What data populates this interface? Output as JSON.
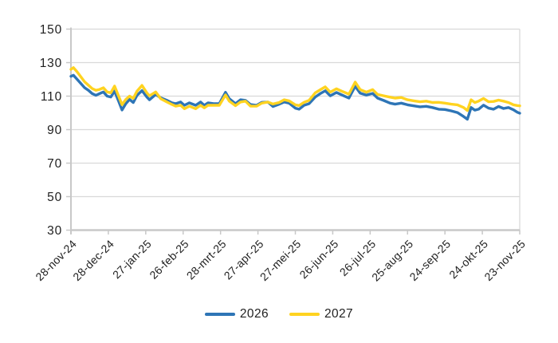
{
  "chart_data": {
    "type": "line",
    "title": "",
    "xlabel": "",
    "ylabel": "",
    "ylim": [
      30,
      150
    ],
    "y_ticks": [
      30,
      50,
      70,
      90,
      110,
      130,
      150
    ],
    "x_range": [
      0,
      360
    ],
    "x_tick_interval_days": 30,
    "x_tick_labels": [
      "28-nov-24",
      "28-dec-24",
      "27-jan-25",
      "26-feb-25",
      "28-mrt-25",
      "27-apr-25",
      "27-mei-25",
      "26-jun-25",
      "26-jul-25",
      "25-aug-25",
      "24-sep-25",
      "24-okt-25",
      "23-nov-25"
    ],
    "grid": true,
    "legend_position": "bottom",
    "days": [
      0,
      2,
      5,
      8,
      11,
      14,
      17,
      20,
      23,
      26,
      29,
      32,
      35,
      38,
      41,
      44,
      47,
      50,
      53,
      57,
      61,
      63,
      68,
      72,
      77,
      81,
      84,
      88,
      91,
      95,
      100,
      104,
      107,
      110,
      115,
      119,
      124,
      127,
      132,
      136,
      140,
      144,
      149,
      153,
      158,
      162,
      167,
      171,
      175,
      180,
      183,
      187,
      191,
      196,
      200,
      204,
      208,
      213,
      217,
      223,
      228,
      232,
      237,
      242,
      246,
      251,
      256,
      260,
      265,
      270,
      275,
      280,
      285,
      290,
      295,
      300,
      305,
      310,
      315,
      318,
      321,
      324,
      327,
      331,
      335,
      339,
      343,
      347,
      351,
      355,
      358,
      360
    ],
    "series": [
      {
        "name": "2026",
        "color": "#2e75b6",
        "values": [
          121.8,
          122.5,
          120.0,
          117.5,
          115.0,
          113.5,
          111.5,
          110.5,
          111.5,
          112.5,
          110.0,
          109.5,
          113.0,
          107.5,
          101.7,
          105.5,
          108.0,
          106.2,
          110.5,
          113.3,
          109.4,
          107.8,
          111.0,
          109.0,
          107.5,
          106.0,
          105.5,
          106.5,
          104.5,
          106.0,
          104.5,
          106.5,
          104.5,
          106.0,
          105.5,
          105.5,
          112.3,
          108.5,
          105.5,
          107.8,
          107.5,
          105.0,
          104.5,
          106.3,
          106.5,
          103.8,
          105.2,
          106.5,
          105.8,
          102.8,
          102.2,
          104.5,
          105.5,
          109.5,
          111.5,
          113.2,
          110.2,
          112.2,
          110.8,
          108.8,
          115.9,
          111.8,
          110.6,
          111.6,
          108.8,
          107.4,
          105.8,
          105.2,
          105.8,
          104.8,
          104.2,
          103.6,
          103.9,
          103.2,
          102.2,
          102.0,
          101.2,
          100.2,
          97.8,
          96.2,
          103.2,
          101.6,
          102.2,
          104.6,
          102.8,
          102.2,
          103.8,
          102.6,
          103.2,
          101.8,
          100.4,
          99.8
        ]
      },
      {
        "name": "2027",
        "color": "#ffd320",
        "values": [
          126.0,
          127.0,
          124.5,
          121.5,
          118.5,
          116.5,
          114.5,
          113.5,
          114.0,
          115.0,
          112.5,
          112.0,
          116.0,
          110.5,
          104.9,
          108.0,
          110.0,
          108.6,
          113.0,
          116.4,
          111.8,
          110.2,
          112.5,
          108.5,
          106.5,
          105.0,
          104.0,
          104.5,
          102.5,
          104.0,
          102.5,
          104.5,
          103.0,
          104.5,
          104.5,
          104.5,
          110.7,
          107.0,
          104.3,
          106.5,
          107.0,
          104.0,
          104.0,
          105.8,
          106.5,
          105.3,
          106.2,
          107.8,
          107.2,
          104.8,
          104.4,
          106.3,
          107.5,
          112.0,
          113.8,
          115.5,
          112.4,
          114.4,
          113.0,
          111.2,
          118.4,
          113.9,
          112.4,
          113.9,
          111.0,
          110.2,
          109.4,
          108.8,
          109.2,
          107.8,
          107.2,
          106.6,
          107.0,
          106.2,
          106.3,
          105.8,
          105.2,
          104.8,
          103.2,
          101.4,
          107.8,
          106.2,
          107.0,
          108.6,
          106.6,
          106.8,
          107.6,
          107.0,
          106.2,
          104.8,
          104.4,
          104.2
        ]
      }
    ]
  },
  "colors": {
    "gridline": "#d9d9d9",
    "axis": "#c8c8c8",
    "text": "#1f1f1f",
    "background": "#ffffff"
  }
}
